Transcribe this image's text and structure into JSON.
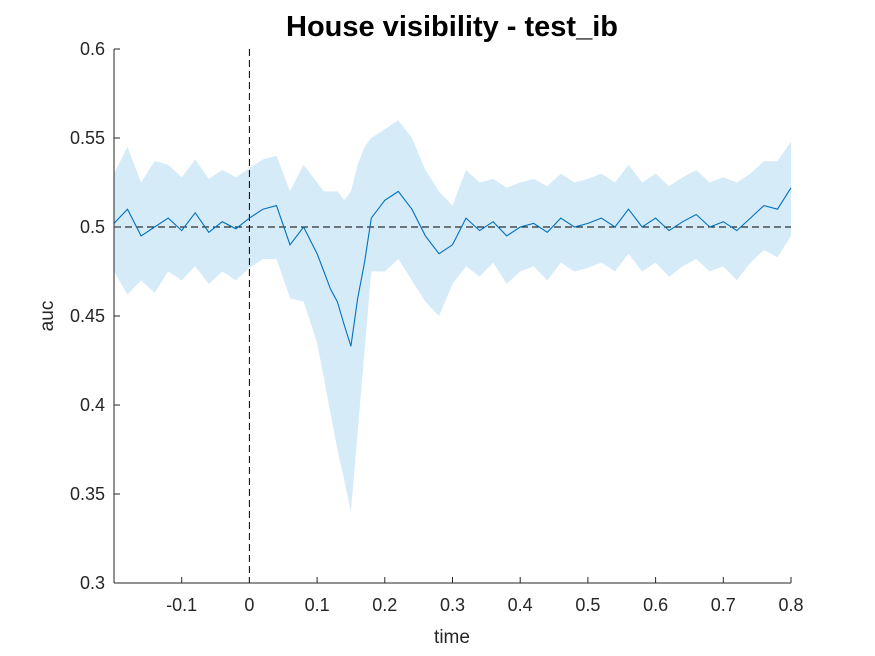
{
  "chart_data": {
    "type": "line",
    "title": "House visibility - test_ib",
    "xlabel": "time",
    "ylabel": "auc",
    "xlim": [
      -0.2,
      0.8
    ],
    "ylim": [
      0.3,
      0.6
    ],
    "x_ticks": [
      -0.1,
      0,
      0.1,
      0.2,
      0.3,
      0.4,
      0.5,
      0.6,
      0.7,
      0.8
    ],
    "x_tick_labels": [
      "-0.1",
      "0",
      "0.1",
      "0.2",
      "0.3",
      "0.4",
      "0.5",
      "0.6",
      "0.7",
      "0.8"
    ],
    "y_ticks": [
      0.3,
      0.35,
      0.4,
      0.45,
      0.5,
      0.55,
      0.6
    ],
    "y_tick_labels": [
      "0.3",
      "0.35",
      "0.4",
      "0.45",
      "0.5",
      "0.55",
      "0.6"
    ],
    "grid": false,
    "reference_lines": {
      "horizontal_y": 0.5,
      "vertical_x": 0,
      "style": "dashed"
    },
    "colors": {
      "line": "#0072BD",
      "band": "#D6EBF8",
      "reference": "#000000",
      "axis": "#262626"
    },
    "series": [
      {
        "x": [
          -0.2,
          -0.18,
          -0.16,
          -0.14,
          -0.12,
          -0.1,
          -0.08,
          -0.06,
          -0.04,
          -0.02,
          0,
          0.02,
          0.04,
          0.06,
          0.08,
          0.1,
          0.11,
          0.12,
          0.13,
          0.14,
          0.15,
          0.16,
          0.17,
          0.18,
          0.2,
          0.22,
          0.24,
          0.26,
          0.28,
          0.3,
          0.32,
          0.34,
          0.36,
          0.38,
          0.4,
          0.42,
          0.44,
          0.46,
          0.48,
          0.5,
          0.52,
          0.54,
          0.56,
          0.58,
          0.6,
          0.62,
          0.64,
          0.66,
          0.68,
          0.7,
          0.72,
          0.74,
          0.76,
          0.78,
          0.8
        ],
        "y": [
          0.502,
          0.51,
          0.495,
          0.5,
          0.505,
          0.498,
          0.508,
          0.497,
          0.503,
          0.499,
          0.505,
          0.51,
          0.512,
          0.49,
          0.5,
          0.485,
          0.475,
          0.465,
          0.458,
          0.445,
          0.433,
          0.46,
          0.48,
          0.505,
          0.515,
          0.52,
          0.51,
          0.495,
          0.485,
          0.49,
          0.505,
          0.498,
          0.503,
          0.495,
          0.5,
          0.502,
          0.497,
          0.505,
          0.5,
          0.502,
          0.505,
          0.5,
          0.51,
          0.5,
          0.505,
          0.498,
          0.503,
          0.507,
          0.5,
          0.503,
          0.498,
          0.505,
          0.512,
          0.51,
          0.522
        ],
        "lower": [
          0.475,
          0.462,
          0.47,
          0.463,
          0.475,
          0.47,
          0.478,
          0.468,
          0.475,
          0.47,
          0.477,
          0.482,
          0.482,
          0.46,
          0.458,
          0.435,
          0.415,
          0.395,
          0.375,
          0.358,
          0.34,
          0.385,
          0.43,
          0.475,
          0.475,
          0.482,
          0.47,
          0.458,
          0.45,
          0.468,
          0.478,
          0.472,
          0.48,
          0.468,
          0.475,
          0.478,
          0.47,
          0.48,
          0.475,
          0.477,
          0.48,
          0.475,
          0.485,
          0.475,
          0.48,
          0.472,
          0.478,
          0.482,
          0.475,
          0.478,
          0.47,
          0.48,
          0.487,
          0.483,
          0.495
        ],
        "upper": [
          0.53,
          0.545,
          0.525,
          0.537,
          0.535,
          0.528,
          0.538,
          0.527,
          0.532,
          0.528,
          0.533,
          0.538,
          0.54,
          0.52,
          0.535,
          0.525,
          0.52,
          0.52,
          0.52,
          0.515,
          0.52,
          0.535,
          0.545,
          0.55,
          0.555,
          0.56,
          0.55,
          0.532,
          0.52,
          0.512,
          0.532,
          0.525,
          0.527,
          0.522,
          0.525,
          0.527,
          0.523,
          0.53,
          0.525,
          0.527,
          0.53,
          0.525,
          0.535,
          0.525,
          0.53,
          0.523,
          0.528,
          0.532,
          0.525,
          0.528,
          0.525,
          0.53,
          0.537,
          0.537,
          0.548
        ]
      }
    ]
  }
}
